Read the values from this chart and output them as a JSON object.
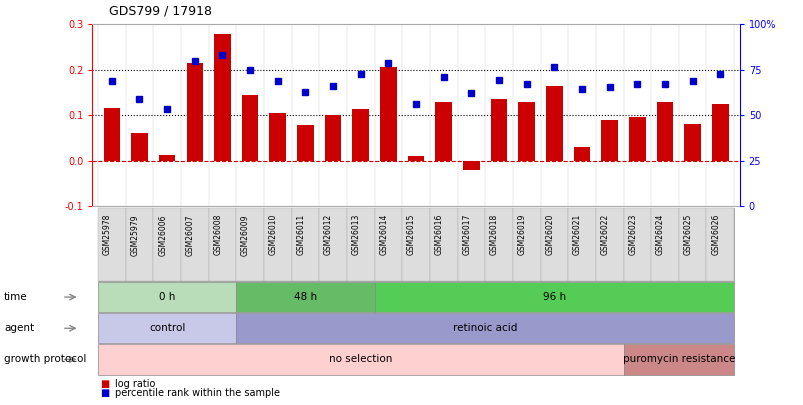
{
  "title": "GDS799 / 17918",
  "samples": [
    "GSM25978",
    "GSM25979",
    "GSM26006",
    "GSM26007",
    "GSM26008",
    "GSM26009",
    "GSM26010",
    "GSM26011",
    "GSM26012",
    "GSM26013",
    "GSM26014",
    "GSM26015",
    "GSM26016",
    "GSM26017",
    "GSM26018",
    "GSM26019",
    "GSM26020",
    "GSM26021",
    "GSM26022",
    "GSM26023",
    "GSM26024",
    "GSM26025",
    "GSM26026"
  ],
  "log_ratio": [
    0.115,
    0.06,
    0.013,
    0.215,
    0.278,
    0.145,
    0.105,
    0.078,
    0.1,
    0.113,
    0.205,
    0.01,
    0.13,
    -0.02,
    0.135,
    0.13,
    0.165,
    0.03,
    0.09,
    0.095,
    0.13,
    0.08,
    0.125
  ],
  "percentile": [
    0.175,
    0.135,
    0.113,
    0.22,
    0.233,
    0.2,
    0.175,
    0.15,
    0.165,
    0.19,
    0.215,
    0.125,
    0.185,
    0.148,
    0.178,
    0.168,
    0.205,
    0.158,
    0.163,
    0.168,
    0.168,
    0.175,
    0.19
  ],
  "bar_color": "#cc0000",
  "dot_color": "#0000cc",
  "ylim_left": [
    -0.1,
    0.3
  ],
  "ylim_right": [
    0,
    100
  ],
  "left_ticks": [
    -0.1,
    0.0,
    0.1,
    0.2,
    0.3
  ],
  "right_ticks": [
    0,
    25,
    50,
    75,
    100
  ],
  "time_groups": [
    {
      "label": "0 h",
      "start": 0,
      "end": 5,
      "color": "#b8ddb8"
    },
    {
      "label": "48 h",
      "start": 5,
      "end": 10,
      "color": "#66bb66"
    },
    {
      "label": "96 h",
      "start": 10,
      "end": 23,
      "color": "#55cc55"
    }
  ],
  "agent_groups": [
    {
      "label": "control",
      "start": 0,
      "end": 5,
      "color": "#c8c8e8"
    },
    {
      "label": "retinoic acid",
      "start": 5,
      "end": 23,
      "color": "#9999cc"
    }
  ],
  "growth_groups": [
    {
      "label": "no selection",
      "start": 0,
      "end": 19,
      "color": "#ffd0d0"
    },
    {
      "label": "puromycin resistance",
      "start": 19,
      "end": 23,
      "color": "#cc8888"
    }
  ],
  "row_labels": [
    "time",
    "agent",
    "growth protocol"
  ],
  "legend_items": [
    {
      "color": "#cc0000",
      "label": "log ratio"
    },
    {
      "color": "#0000cc",
      "label": "percentile rank within the sample"
    }
  ]
}
